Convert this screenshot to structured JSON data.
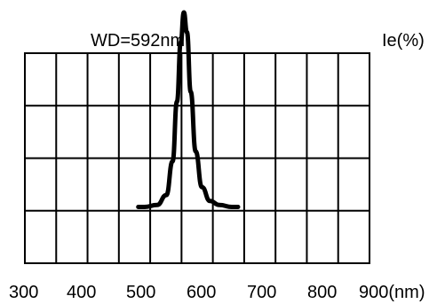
{
  "chart_data": {
    "type": "line",
    "title": "",
    "xlabel": "",
    "ylabel": "Ie(%)",
    "xlim": [
      300,
      900
    ],
    "ylim": [
      0,
      100
    ],
    "grid": true,
    "x_ticks": [
      "300",
      "400",
      "500",
      "600",
      "700",
      "800",
      "900(nm)"
    ],
    "annotation": "WD=592nm",
    "series": [
      {
        "values": [
          {
            "x": 490,
            "y": 2
          },
          {
            "x": 500,
            "y": 2
          },
          {
            "x": 520,
            "y": 3
          },
          {
            "x": 535,
            "y": 8
          },
          {
            "x": 545,
            "y": 25
          },
          {
            "x": 552,
            "y": 55
          },
          {
            "x": 558,
            "y": 85
          },
          {
            "x": 563,
            "y": 100
          },
          {
            "x": 568,
            "y": 90
          },
          {
            "x": 574,
            "y": 60
          },
          {
            "x": 582,
            "y": 30
          },
          {
            "x": 592,
            "y": 12
          },
          {
            "x": 605,
            "y": 5
          },
          {
            "x": 620,
            "y": 3
          },
          {
            "x": 640,
            "y": 2
          },
          {
            "x": 650,
            "y": 2
          }
        ],
        "color": "#000000"
      }
    ],
    "colors": {
      "grid": "#000000",
      "line": "#000000",
      "background": "#ffffff"
    }
  }
}
